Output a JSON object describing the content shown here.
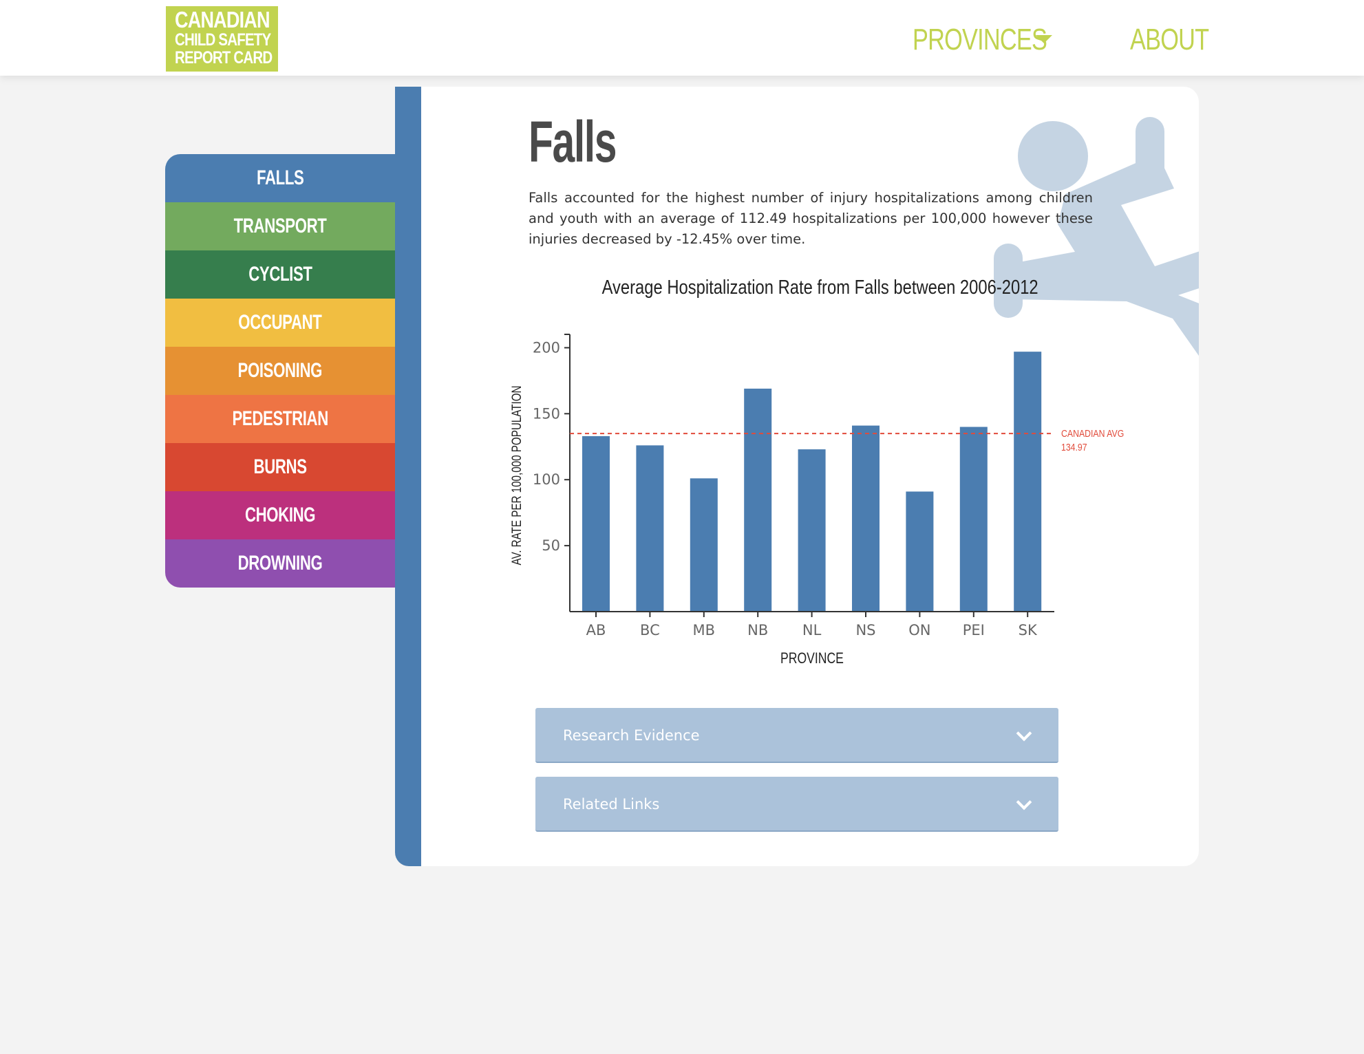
{
  "header": {
    "logo": {
      "line1": "CANADIAN",
      "line2": "CHILD SAFETY",
      "line3": "REPORT CARD"
    },
    "nav": {
      "provinces": "PROVINCES",
      "about": "ABOUT"
    }
  },
  "sidebar": {
    "items": [
      {
        "label": "FALLS",
        "color": "#4b7db0"
      },
      {
        "label": "TRANSPORT",
        "color": "#73aa5e"
      },
      {
        "label": "CYCLIST",
        "color": "#367e4d"
      },
      {
        "label": "OCCUPANT",
        "color": "#f1be41"
      },
      {
        "label": "POISONING",
        "color": "#e69133"
      },
      {
        "label": "PEDESTRIAN",
        "color": "#ee7444"
      },
      {
        "label": "BURNS",
        "color": "#d84831"
      },
      {
        "label": "CHOKING",
        "color": "#bc307d"
      },
      {
        "label": "DROWNING",
        "color": "#8f4faf"
      }
    ]
  },
  "main": {
    "title": "Falls",
    "intro": "Falls accounted for the highest number of injury hospitalizations among children and youth with an average of 112.49 hospitalizations per 100,000 however these injuries decreased by -12.45% over time.",
    "accordions": [
      {
        "label": "Research Evidence"
      },
      {
        "label": "Related Links"
      }
    ]
  },
  "chart_data": {
    "type": "bar",
    "title": "Average Hospitalization Rate from Falls between 2006-2012",
    "xlabel": "PROVINCE",
    "ylabel": "AV. RATE PER 100,000 POPULATION",
    "categories": [
      "AB",
      "BC",
      "MB",
      "NB",
      "NL",
      "NS",
      "ON",
      "PEI",
      "SK"
    ],
    "values": [
      133,
      126,
      101,
      169,
      123,
      141,
      91,
      140,
      197
    ],
    "ylim": [
      0,
      207
    ],
    "yticks": [
      50,
      100,
      150,
      200
    ],
    "reference_line": {
      "label": "CANADIAN AVG",
      "value_label": "134.97",
      "value": 134.97,
      "color": "#e14b3b"
    },
    "bar_color": "#4b7db0"
  }
}
